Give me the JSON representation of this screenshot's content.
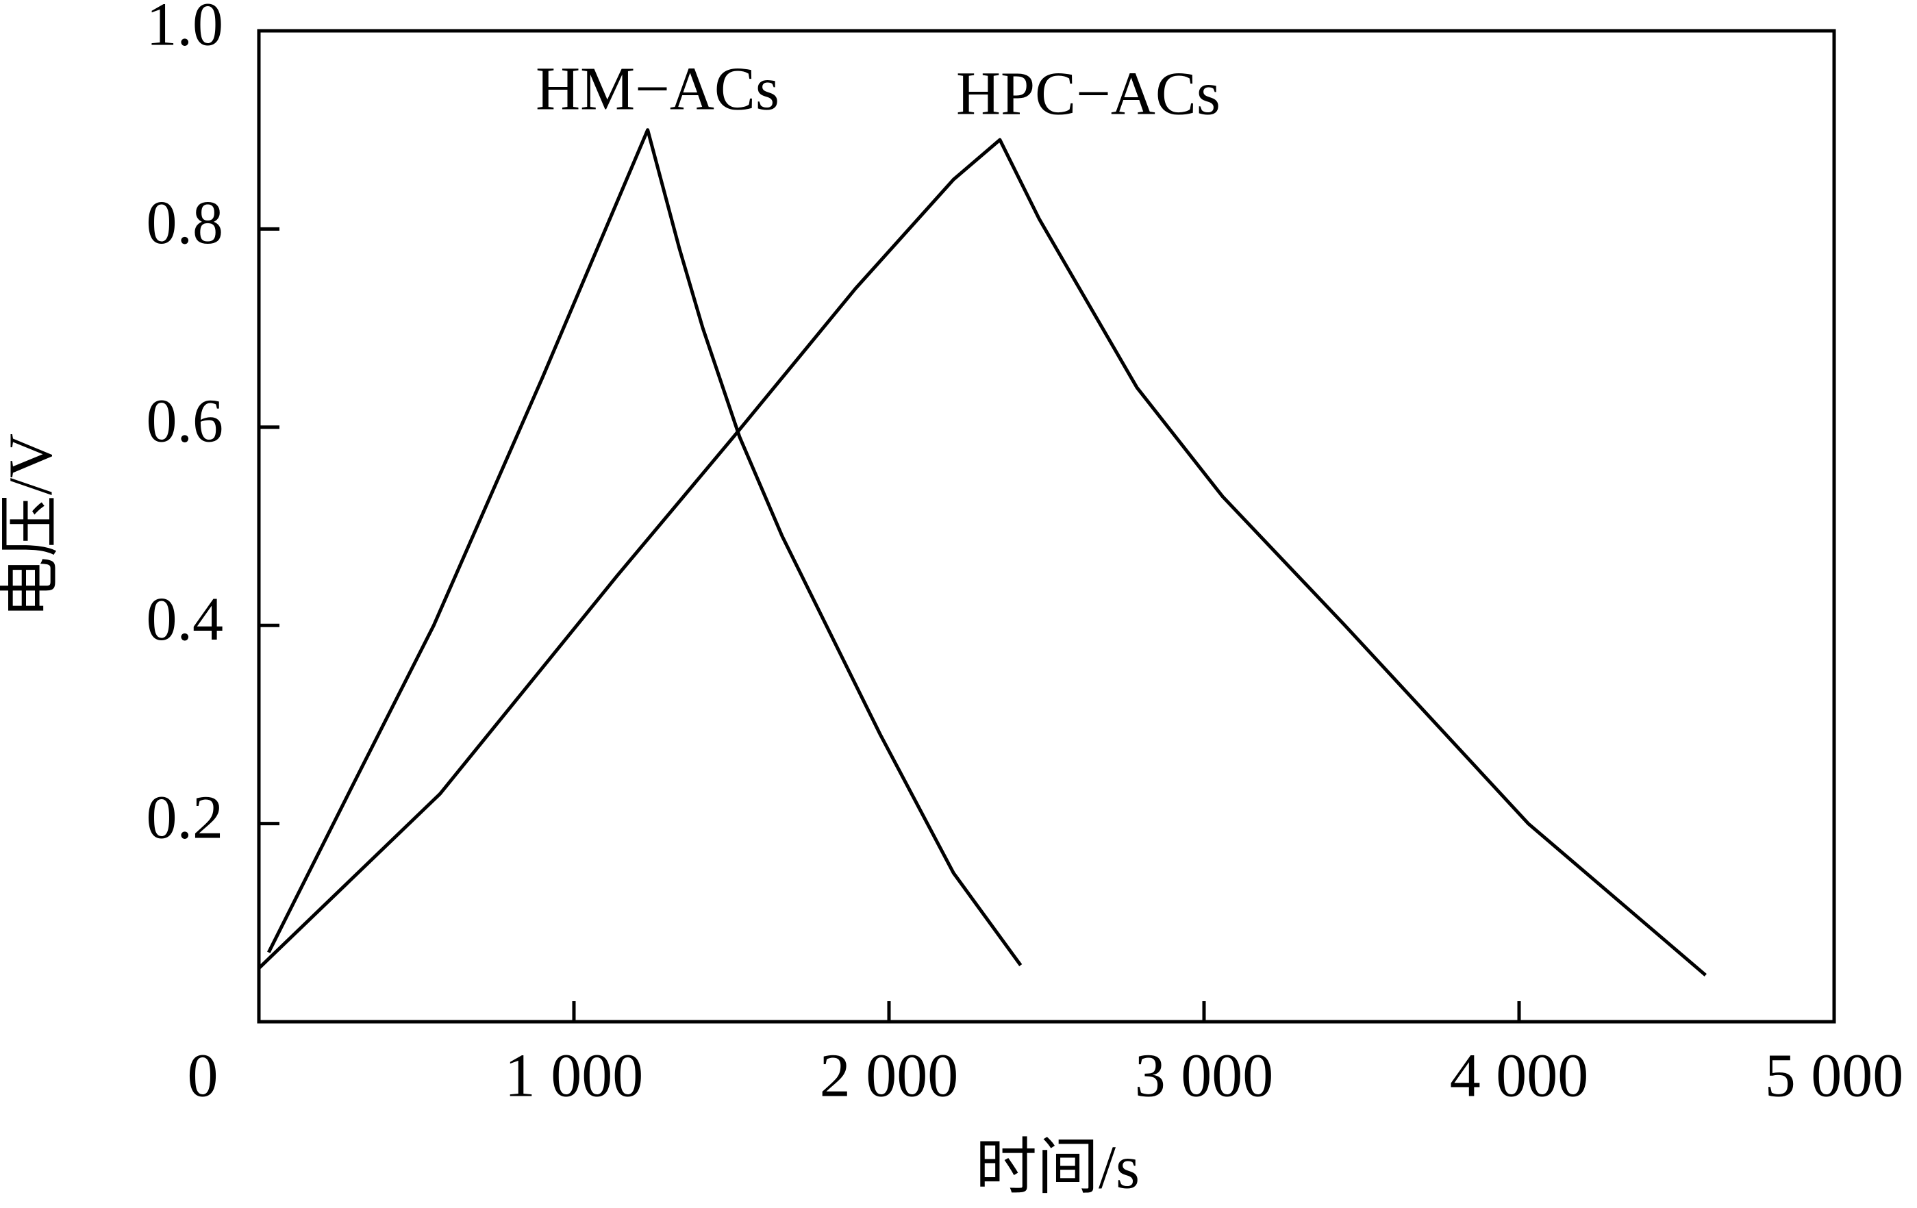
{
  "chart_data": {
    "type": "line",
    "xlabel": "时间/s",
    "ylabel": "电压/V",
    "annotations": [
      "HM−ACs",
      "HPC−ACs"
    ],
    "xlim": [
      0,
      5000
    ],
    "ylim": [
      0,
      1
    ],
    "xticks": [
      0,
      {
        "value": 1000,
        "label": "1 000"
      },
      {
        "value": 2000,
        "label": "2 000"
      },
      {
        "value": 3000,
        "label": "3 000"
      },
      {
        "value": 4000,
        "label": "4 000"
      },
      {
        "value": 5000,
        "label": "5 000"
      }
    ],
    "yticks": [
      0.2,
      0.4,
      0.6,
      0.8,
      {
        "value": 1,
        "label": "1.0"
      }
    ],
    "grid": false,
    "series": [
      {
        "color": "#000000",
        "x": [
          31,
          300,
          555,
          900,
          1234,
          1335,
          1409,
          1526,
          1661,
          1972,
          2205,
          2418
        ],
        "values": [
          0.07,
          0.24,
          0.4,
          0.65,
          0.9,
          0.78,
          0.7,
          0.59,
          0.49,
          0.29,
          0.15,
          0.057
        ]
      },
      {
        "color": "#000000",
        "x": [
          0,
          575,
          1137,
          1506,
          1894,
          2205,
          2352,
          2477,
          2787,
          3059,
          3447,
          4029,
          4592
        ],
        "values": [
          0.054,
          0.23,
          0.45,
          0.59,
          0.74,
          0.85,
          0.89,
          0.81,
          0.64,
          0.53,
          0.4,
          0.2,
          0.047
        ]
      }
    ]
  }
}
